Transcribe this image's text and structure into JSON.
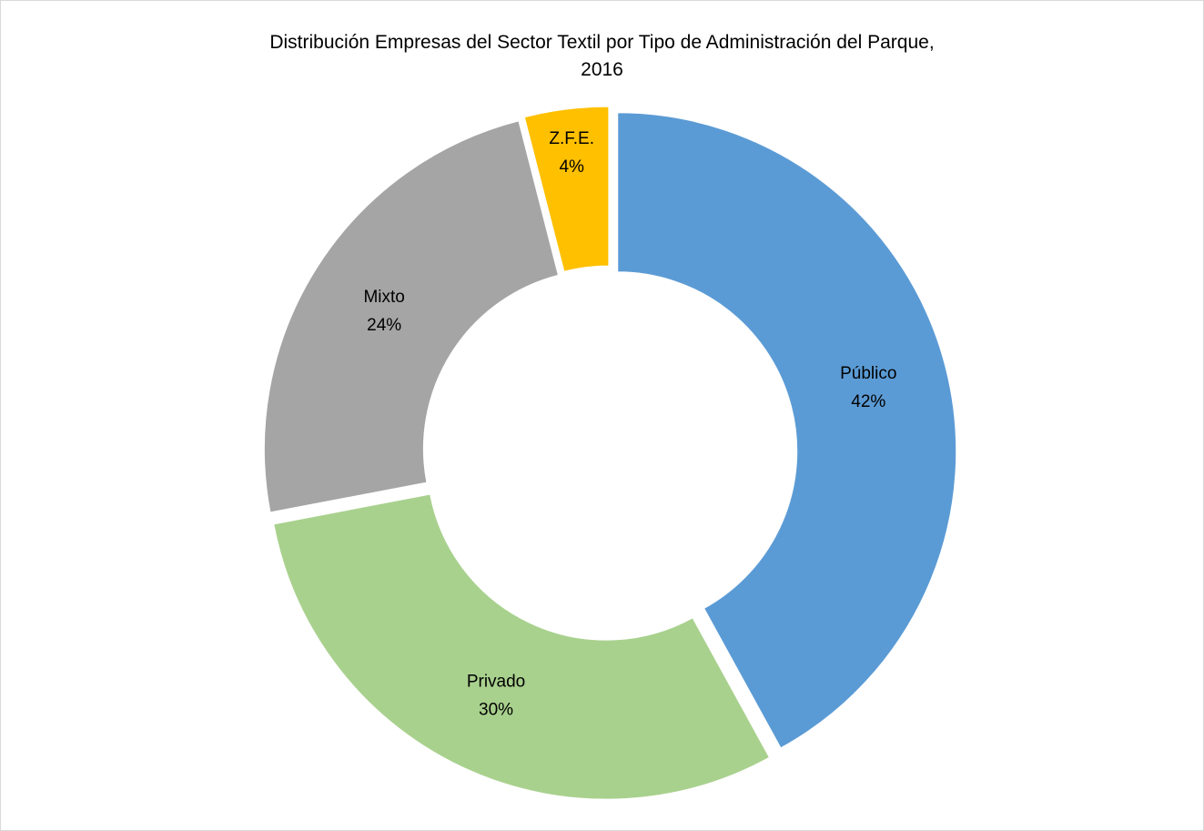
{
  "chart_data": {
    "type": "donut",
    "title": "Distribución Empresas del Sector Textil por Tipo de Administración del Parque, 2016",
    "categories": [
      "Público",
      "Privado",
      "Mixto",
      "Z.F.E."
    ],
    "values": [
      42,
      30,
      24,
      4
    ],
    "value_labels": [
      "42%",
      "30%",
      "24%",
      "4%"
    ],
    "colors": [
      "#5b9bd5",
      "#a9d18e",
      "#a5a5a5",
      "#ffc000"
    ]
  }
}
